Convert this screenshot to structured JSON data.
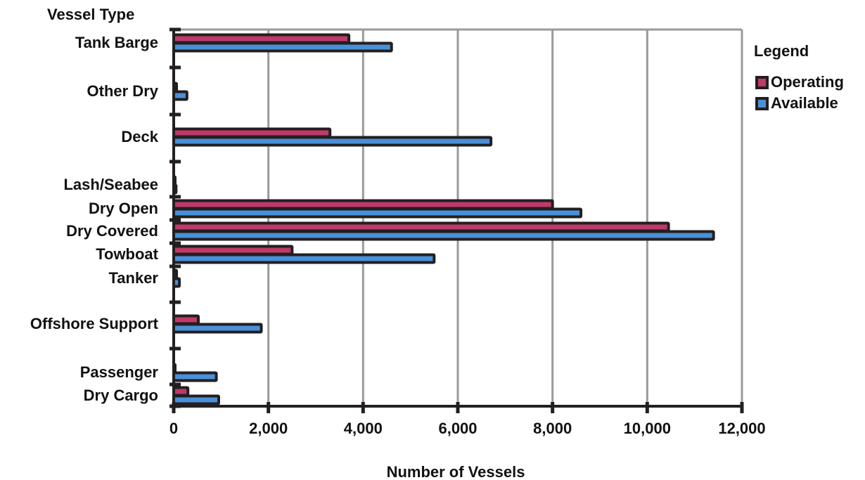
{
  "chart_data": {
    "type": "bar",
    "orientation": "horizontal",
    "y_axis_title": "Vessel Type",
    "xlabel": "Number of Vessels",
    "xlim": [
      0,
      12000
    ],
    "x_ticks": [
      0,
      2000,
      4000,
      6000,
      8000,
      10000,
      12000
    ],
    "x_tick_labels": [
      "0",
      "2,000",
      "4,000",
      "6,000",
      "8,000",
      "10,000",
      "12,000"
    ],
    "categories": [
      "Tank Barge",
      "Other Dry",
      "Deck",
      "Lash/Seabee",
      "Dry Open",
      "Dry Covered",
      "Towboat",
      "Tanker",
      "Offshore Support",
      "Passenger",
      "Dry Cargo"
    ],
    "series": [
      {
        "name": "Operating",
        "color": "#c0396b",
        "values": [
          3700,
          60,
          3300,
          20,
          8000,
          10450,
          2500,
          60,
          520,
          0,
          300
        ]
      },
      {
        "name": "Available",
        "color": "#4a90d9",
        "values": [
          4600,
          280,
          6700,
          50,
          8600,
          11400,
          5500,
          120,
          1850,
          900,
          950
        ]
      }
    ],
    "legend": {
      "title": "Legend",
      "placement": "right",
      "entries": [
        "Operating",
        "Available"
      ]
    },
    "grid": {
      "vertical": true,
      "horizontal": false,
      "color": "#9a9a9a"
    }
  }
}
